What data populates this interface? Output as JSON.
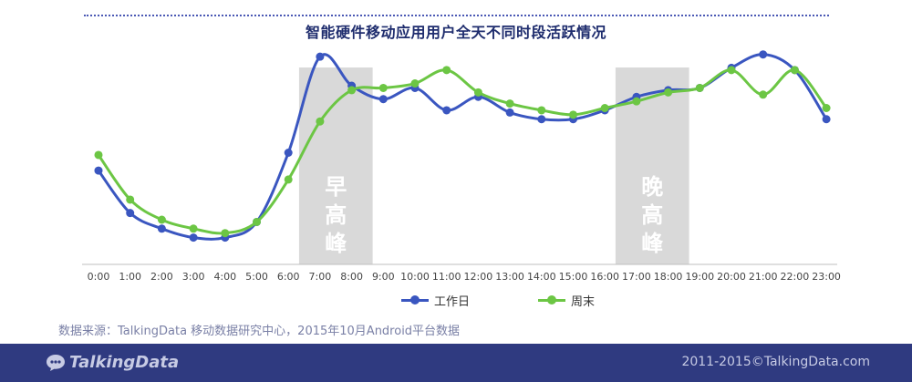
{
  "title": "智能硬件移动应用用户全天不同时段活跃情况",
  "chart_data": {
    "type": "line",
    "categories": [
      "0:00",
      "1:00",
      "2:00",
      "3:00",
      "4:00",
      "5:00",
      "6:00",
      "7:00",
      "8:00",
      "9:00",
      "10:00",
      "11:00",
      "12:00",
      "13:00",
      "14:00",
      "15:00",
      "16:00",
      "17:00",
      "18:00",
      "19:00",
      "20:00",
      "21:00",
      "22:00",
      "23:00"
    ],
    "series": [
      {
        "name": "工作日",
        "color": "#3a56c0",
        "values": [
          42,
          23,
          16,
          12,
          12,
          19,
          50,
          93,
          80,
          74,
          79,
          69,
          75,
          68,
          65,
          65,
          69,
          75,
          78,
          79,
          88,
          94,
          87,
          65
        ]
      },
      {
        "name": "周末",
        "color": "#6cc644",
        "values": [
          49,
          29,
          20,
          16,
          14,
          19,
          38,
          64,
          78,
          79,
          81,
          87,
          77,
          72,
          69,
          67,
          70,
          73,
          77,
          79,
          87,
          76,
          87,
          70
        ]
      }
    ],
    "highlight_bands": [
      {
        "from": "7:00",
        "to": "8:00",
        "label": [
          "早",
          "高",
          "峰"
        ]
      },
      {
        "from": "17:00",
        "to": "18:00",
        "label": [
          "晚",
          "高",
          "峰"
        ]
      }
    ],
    "ylim": [
      0,
      100
    ],
    "y_axis_visible": false,
    "grid": false,
    "legend": "bottom-center",
    "band_color": "#d9d9d9"
  },
  "source": "数据来源：TalkingData 移动数据研究中心，2015年10月Android平台数据",
  "footer": {
    "logo_text": "TalkingData",
    "copyright": "2011-2015©TalkingData.com"
  }
}
